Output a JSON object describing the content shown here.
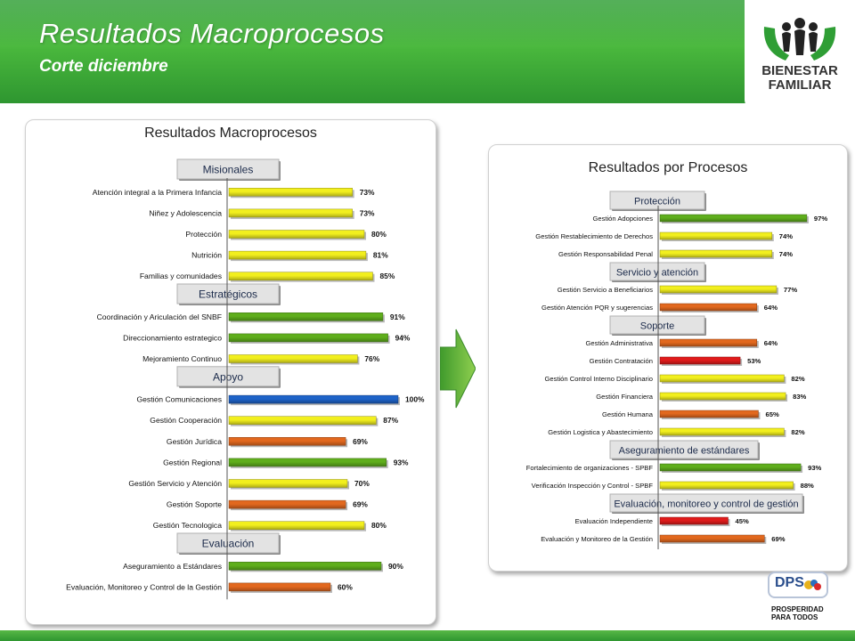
{
  "header": {
    "title": "Resultados Macroprocesos",
    "subtitle": "Corte diciembre",
    "logo_line1": "BIENESTAR",
    "logo_line2": "FAMILIAR"
  },
  "footer": {
    "dps_label": "DPS",
    "prosperidad_line1": "PROSPERIDAD",
    "prosperidad_line2": "PARA TODOS"
  },
  "colors": {
    "green": "#5fae1c",
    "yellow": "#f2ef1e",
    "orange": "#e2681e",
    "red": "#e01b1b",
    "blue": "#1e63c8"
  },
  "chart_data": [
    {
      "type": "bar",
      "orientation": "horizontal",
      "title": "Resultados Macroprocesos",
      "xlim": [
        0,
        100
      ],
      "value_suffix": "%",
      "groups": [
        {
          "name": "Misionales",
          "items": [
            {
              "label": "Atención integral a la Primera Infancia",
              "value": 73,
              "color": "yellow"
            },
            {
              "label": "Niñez y Adolescencia",
              "value": 73,
              "color": "yellow"
            },
            {
              "label": "Protección",
              "value": 80,
              "color": "yellow"
            },
            {
              "label": "Nutrición",
              "value": 81,
              "color": "yellow"
            },
            {
              "label": "Familias y comunidades",
              "value": 85,
              "color": "yellow"
            }
          ]
        },
        {
          "name": "Estratégicos",
          "items": [
            {
              "label": "Coordinación y Ariculación del SNBF",
              "value": 91,
              "color": "green"
            },
            {
              "label": "Direccionamiento estrategico",
              "value": 94,
              "color": "green"
            },
            {
              "label": "Mejoramiento Continuo",
              "value": 76,
              "color": "yellow"
            }
          ]
        },
        {
          "name": "Apoyo",
          "items": [
            {
              "label": "Gestión Comunicaciones",
              "value": 100,
              "color": "blue"
            },
            {
              "label": "Gestión Cooperación",
              "value": 87,
              "color": "yellow"
            },
            {
              "label": "Gestión Jurídica",
              "value": 69,
              "color": "orange"
            },
            {
              "label": "Gestión Regional",
              "value": 93,
              "color": "green"
            },
            {
              "label": "Gestión Servicio y Atención",
              "value": 70,
              "color": "yellow"
            },
            {
              "label": "Gestión Soporte",
              "value": 69,
              "color": "orange"
            },
            {
              "label": "Gestión Tecnologica",
              "value": 80,
              "color": "yellow"
            }
          ]
        },
        {
          "name": "Evaluación",
          "items": [
            {
              "label": "Aseguramiento a Estándares",
              "value": 90,
              "color": "green"
            },
            {
              "label": "Evaluación, Monitoreo y Control de la Gestión",
              "value": 60,
              "color": "orange"
            }
          ]
        }
      ]
    },
    {
      "type": "bar",
      "orientation": "horizontal",
      "title": "Resultados por Procesos",
      "xlim": [
        0,
        100
      ],
      "value_suffix": "%",
      "groups": [
        {
          "name": "Protección",
          "items": [
            {
              "label": "Gestión Adopciones",
              "value": 97,
              "color": "green"
            },
            {
              "label": "Gestión Restablecimiento de Derechos",
              "value": 74,
              "color": "yellow"
            },
            {
              "label": "Gestión Responsabilidad Penal",
              "value": 74,
              "color": "yellow"
            }
          ]
        },
        {
          "name": "Servicio y atención",
          "items": [
            {
              "label": "Gestión Servicio a Beneficiarios",
              "value": 77,
              "color": "yellow"
            },
            {
              "label": "Gestión Atención PQR y sugerencias",
              "value": 64,
              "color": "orange"
            }
          ]
        },
        {
          "name": "Soporte",
          "items": [
            {
              "label": "Gestión Administrativa",
              "value": 64,
              "color": "orange"
            },
            {
              "label": "Gestión Contratación",
              "value": 53,
              "color": "red"
            },
            {
              "label": "Gestión Control Interno Disciplinario",
              "value": 82,
              "color": "yellow"
            },
            {
              "label": "Gestión Financiera",
              "value": 83,
              "color": "yellow"
            },
            {
              "label": "Gestión Humana",
              "value": 65,
              "color": "orange"
            },
            {
              "label": "Gestión Logistica y Abastecimiento",
              "value": 82,
              "color": "yellow"
            }
          ]
        },
        {
          "name": "Aseguramiento de estándares",
          "items": [
            {
              "label": "Fortalecimiento de organizaciones - SPBF",
              "value": 93,
              "color": "green"
            },
            {
              "label": "Verificación Inspección y Control - SPBF",
              "value": 88,
              "color": "yellow"
            }
          ]
        },
        {
          "name": "Evaluación, monitoreo y control de gestión",
          "items": [
            {
              "label": "Evaluación Independiente",
              "value": 45,
              "color": "red"
            },
            {
              "label": "Evaluación y Monitoreo de la Gestión",
              "value": 69,
              "color": "orange"
            }
          ]
        }
      ]
    }
  ]
}
